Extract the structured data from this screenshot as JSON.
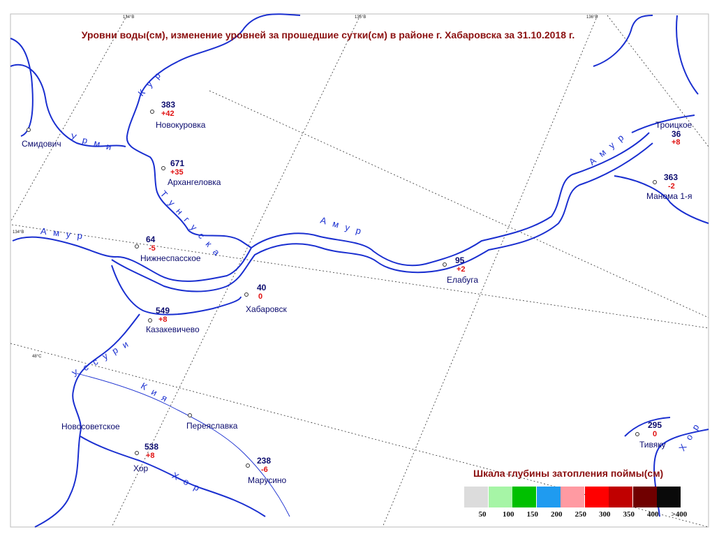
{
  "title": "Уровни воды(см), изменение уровней за прошедшие сутки(см) в районе г. Хабаровска за 31.10.2018 г.",
  "grid_labels": {
    "lon_134": "134°В",
    "lon_135": "135°В",
    "lon_136": "136°В",
    "lon_134_left": "134°В",
    "lat_48": "48°С"
  },
  "rivers": {
    "kur": "К у р",
    "urmi": "У р м и",
    "tunguska": "Т у н г у с к а",
    "amur_left": "А м у р",
    "amur_mid": "А м у р",
    "amur_right": "А м у р",
    "ussuri": "У с с у р и",
    "kiya": "К и я",
    "khor_bottom": "Х о р",
    "khor_right": "Х о р"
  },
  "stations": [
    {
      "id": "novokurovka",
      "name": "Новокуровка",
      "level": "383",
      "change": "+42"
    },
    {
      "id": "smidovich",
      "name": "Смидович",
      "level": "",
      "change": ""
    },
    {
      "id": "arkhangelovka",
      "name": "Архангеловка",
      "level": "671",
      "change": "+35"
    },
    {
      "id": "nizhnespasskoe",
      "name": "Нижнеспасское",
      "level": "64",
      "change": "-5"
    },
    {
      "id": "khabarovsk",
      "name": "Хабаровск",
      "level": "40",
      "change": "0"
    },
    {
      "id": "kazakevichevo",
      "name": "Казакевичево",
      "level": "549",
      "change": "+8"
    },
    {
      "id": "elabuga",
      "name": "Елабуга",
      "level": "95",
      "change": "+2"
    },
    {
      "id": "troitskoe",
      "name": "Троицкое",
      "level": "36",
      "change": "+8"
    },
    {
      "id": "manoma",
      "name": "Манома 1-я",
      "level": "363",
      "change": "-2"
    },
    {
      "id": "novosovetskoe",
      "name": "Новосоветское",
      "level": "",
      "change": ""
    },
    {
      "id": "pereyaslavka",
      "name": "Переяславка",
      "level": "",
      "change": ""
    },
    {
      "id": "khor",
      "name": "Хор",
      "level": "538",
      "change": "+8"
    },
    {
      "id": "marusino",
      "name": "Марусино",
      "level": "238",
      "change": "-6"
    },
    {
      "id": "tivyaku",
      "name": "Тивяку",
      "level": "295",
      "change": "0"
    }
  ],
  "legend": {
    "title": "Шкала глубины затопления поймы(см)",
    "colors": [
      "#dcdcdc",
      "#a6f5a6",
      "#00c000",
      "#1f9bf0",
      "#ff9aa2",
      "#ff0000",
      "#c00000",
      "#700000",
      "#0a0a0a"
    ],
    "ticks": [
      "50",
      "100",
      "150",
      "200",
      "250",
      "300",
      "350",
      "400",
      ">400"
    ]
  }
}
